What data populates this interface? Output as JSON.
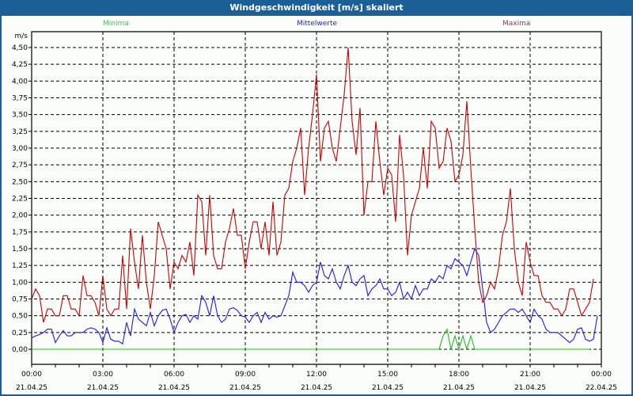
{
  "window": {
    "title": "Windgeschwindigkeit [m/s] skaliert"
  },
  "legend": [
    {
      "label": "Minima",
      "color": "#33cc55"
    },
    {
      "label": "Mittelwerte",
      "color": "#2020ee"
    },
    {
      "label": "Maxima",
      "color": "#993366"
    }
  ],
  "chart_data": {
    "type": "line",
    "title": "Windgeschwindigkeit [m/s] skaliert",
    "ylabel": "m/s",
    "ylim": [
      0,
      4.5
    ],
    "y_ticks": [
      "0,00",
      "0,25",
      "0,50",
      "0,75",
      "1,00",
      "1,25",
      "1,50",
      "1,75",
      "2,00",
      "2,25",
      "2,50",
      "2,75",
      "3,00",
      "3,25",
      "3,50",
      "3,75",
      "4,00",
      "4,25",
      "4,50"
    ],
    "x_ticks": [
      {
        "time": "00:00",
        "date": "21.04.25"
      },
      {
        "time": "03:00",
        "date": "21.04.25"
      },
      {
        "time": "06:00",
        "date": "21.04.25"
      },
      {
        "time": "09:00",
        "date": "21.04.25"
      },
      {
        "time": "12:00",
        "date": "21.04.25"
      },
      {
        "time": "15:00",
        "date": "21.04.25"
      },
      {
        "time": "18:00",
        "date": "21.04.25"
      },
      {
        "time": "21:00",
        "date": "21.04.25"
      },
      {
        "time": "00:00",
        "date": "22.04.25"
      }
    ],
    "x_range_hours": [
      0,
      24
    ],
    "interval_minutes": 10,
    "grid": true,
    "series": [
      {
        "name": "Minima",
        "color": "#22bb22",
        "values": [
          0,
          0,
          0,
          0,
          0,
          0,
          0,
          0,
          0,
          0,
          0,
          0,
          0,
          0,
          0,
          0,
          0,
          0,
          0,
          0,
          0,
          0,
          0,
          0,
          0,
          0,
          0,
          0,
          0,
          0,
          0,
          0,
          0,
          0,
          0,
          0,
          0,
          0,
          0,
          0,
          0,
          0,
          0,
          0,
          0,
          0,
          0,
          0,
          0,
          0,
          0,
          0,
          0,
          0,
          0,
          0,
          0,
          0,
          0,
          0,
          0,
          0,
          0,
          0,
          0,
          0,
          0,
          0,
          0,
          0,
          0,
          0,
          0,
          0,
          0,
          0,
          0,
          0,
          0,
          0,
          0,
          0,
          0,
          0,
          0,
          0,
          0,
          0,
          0,
          0,
          0,
          0,
          0,
          0,
          0,
          0,
          0,
          0,
          0,
          0,
          0,
          0,
          0,
          0,
          0.2,
          0.3,
          0,
          0.2,
          0,
          0.2,
          0,
          0.2,
          0,
          0,
          0,
          0,
          0,
          0,
          0,
          0,
          0,
          0,
          0,
          0,
          0,
          0,
          0,
          0,
          0,
          0,
          0,
          0,
          0,
          0,
          0,
          0,
          0,
          0,
          0,
          0,
          0,
          0
        ]
      },
      {
        "name": "Mittelwerte",
        "color": "#1a1aee",
        "values": [
          0.17,
          0.2,
          0.22,
          0.25,
          0.3,
          0.3,
          0.1,
          0.2,
          0.28,
          0.2,
          0.2,
          0.25,
          0.25,
          0.25,
          0.3,
          0.32,
          0.3,
          0.25,
          0.1,
          0.32,
          0.15,
          0.12,
          0.12,
          0.08,
          0.4,
          0.2,
          0.6,
          0.45,
          0.4,
          0.35,
          0.55,
          0.35,
          0.5,
          0.58,
          0.6,
          0.45,
          0.25,
          0.4,
          0.5,
          0.52,
          0.4,
          0.5,
          0.45,
          0.8,
          0.7,
          0.5,
          0.8,
          0.5,
          0.4,
          0.45,
          0.6,
          0.62,
          0.58,
          0.5,
          0.48,
          0.4,
          0.5,
          0.55,
          0.4,
          0.55,
          0.45,
          0.5,
          0.48,
          0.5,
          0.65,
          0.8,
          1.15,
          1.0,
          1.0,
          0.95,
          0.85,
          0.95,
          1.0,
          1.3,
          1.1,
          1.05,
          1.2,
          1.0,
          0.9,
          1.1,
          1.25,
          1.0,
          0.95,
          1.05,
          1.1,
          0.8,
          0.9,
          0.95,
          1.05,
          0.9,
          0.9,
          0.8,
          0.85,
          1.0,
          0.75,
          0.85,
          0.75,
          0.95,
          0.8,
          0.9,
          0.9,
          1.05,
          1.0,
          1.1,
          1.05,
          1.25,
          1.2,
          1.35,
          1.3,
          1.25,
          1.1,
          1.3,
          1.5,
          1.4,
          0.9,
          0.4,
          0.25,
          0.3,
          0.4,
          0.5,
          0.55,
          0.6,
          0.6,
          0.55,
          0.6,
          0.5,
          0.4,
          0.6,
          0.5,
          0.45,
          0.3,
          0.25,
          0.25,
          0.25,
          0.2,
          0.15,
          0.1,
          0.15,
          0.3,
          0.32,
          0.15,
          0.12,
          0.15,
          0.5
        ]
      },
      {
        "name": "Maxima",
        "color": "#cc0000",
        "values": [
          0.75,
          0.9,
          0.8,
          0.4,
          0.6,
          0.6,
          0.5,
          0.5,
          0.8,
          0.8,
          0.6,
          0.6,
          0.5,
          1.1,
          0.8,
          0.8,
          0.7,
          0.5,
          1.1,
          0.6,
          0.5,
          0.6,
          0.6,
          1.4,
          0.6,
          1.8,
          1.3,
          0.9,
          1.7,
          1.0,
          0.6,
          1.1,
          1.9,
          1.7,
          1.5,
          0.9,
          1.3,
          1.2,
          1.4,
          1.3,
          1.6,
          1.1,
          2.3,
          2.2,
          1.4,
          2.3,
          1.4,
          1.2,
          1.2,
          1.6,
          1.8,
          2.1,
          1.7,
          1.7,
          1.2,
          1.6,
          1.9,
          1.9,
          1.5,
          1.9,
          1.4,
          2.2,
          1.4,
          1.6,
          2.3,
          2.4,
          2.8,
          3.0,
          3.3,
          2.3,
          3.0,
          3.5,
          4.1,
          2.8,
          3.3,
          3.4,
          3.0,
          2.8,
          3.3,
          3.8,
          4.5,
          3.4,
          2.9,
          3.6,
          2.0,
          2.5,
          2.5,
          3.4,
          2.8,
          2.3,
          2.7,
          2.6,
          1.9,
          3.2,
          2.6,
          1.4,
          2.0,
          2.2,
          2.4,
          3.0,
          2.4,
          3.4,
          3.3,
          2.7,
          2.8,
          3.3,
          3.1,
          2.5,
          2.6,
          2.9,
          3.7,
          2.7,
          1.8,
          1.0,
          0.7,
          0.8,
          1.0,
          0.9,
          1.2,
          1.7,
          1.9,
          2.4,
          1.5,
          1.0,
          0.8,
          1.6,
          1.3,
          1.1,
          1.1,
          0.8,
          0.7,
          0.7,
          0.6,
          0.6,
          0.5,
          0.6,
          0.9,
          0.9,
          0.7,
          0.5,
          0.6,
          0.7,
          1.05
        ]
      }
    ]
  }
}
